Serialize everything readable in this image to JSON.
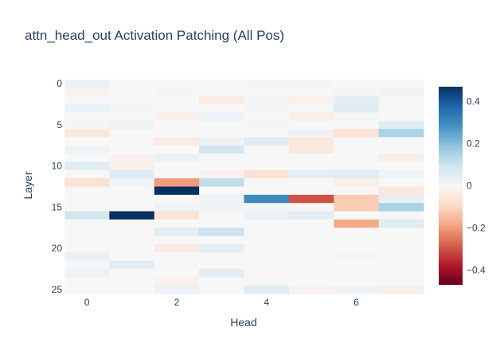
{
  "chart_data": {
    "type": "heatmap",
    "title": "attn_head_out Activation Patching (All Pos)",
    "xlabel": "Head",
    "ylabel": "Layer",
    "x_categories": [
      0,
      1,
      2,
      3,
      4,
      5,
      6,
      7
    ],
    "y_categories": [
      0,
      1,
      2,
      3,
      4,
      5,
      6,
      7,
      8,
      9,
      10,
      11,
      12,
      13,
      14,
      15,
      16,
      17,
      18,
      19,
      20,
      21,
      22,
      23,
      24,
      25
    ],
    "x_tick_labels": [
      "0",
      "2",
      "4",
      "6"
    ],
    "y_tick_labels": [
      "0",
      "5",
      "10",
      "15",
      "20",
      "25"
    ],
    "colorscale": "RdBu",
    "zmin": -0.47,
    "zmax": 0.47,
    "colorbar_tick_labels": [
      "0.4",
      "0.2",
      "0",
      "−0.2",
      "−0.4"
    ],
    "colorbar_tick_values": [
      0.4,
      0.2,
      0,
      -0.2,
      -0.4
    ],
    "z": [
      [
        0.03,
        0.0,
        0.0,
        0.0,
        0.01,
        0.01,
        0.0,
        0.0
      ],
      [
        -0.02,
        0.0,
        0.01,
        0.0,
        0.0,
        0.0,
        0.01,
        0.02
      ],
      [
        0.0,
        0.0,
        0.0,
        -0.04,
        0.01,
        -0.02,
        0.05,
        0.0
      ],
      [
        0.03,
        0.01,
        0.0,
        0.0,
        0.01,
        0.0,
        0.06,
        0.0
      ],
      [
        0.0,
        0.0,
        -0.02,
        0.03,
        0.0,
        -0.03,
        0.01,
        0.0
      ],
      [
        0.01,
        0.02,
        0.0,
        0.0,
        -0.01,
        0.0,
        0.0,
        0.06
      ],
      [
        -0.05,
        0.0,
        0.0,
        0.0,
        0.0,
        0.02,
        -0.07,
        0.15
      ],
      [
        0.0,
        0.0,
        -0.04,
        0.02,
        0.06,
        -0.05,
        0.0,
        0.0
      ],
      [
        0.02,
        0.0,
        0.0,
        0.09,
        0.0,
        -0.05,
        0.0,
        0.0
      ],
      [
        0.0,
        -0.02,
        0.03,
        0.0,
        0.0,
        0.0,
        0.0,
        -0.03
      ],
      [
        0.06,
        -0.03,
        0.0,
        0.0,
        0.0,
        0.0,
        0.0,
        0.0
      ],
      [
        0.0,
        0.06,
        0.0,
        -0.02,
        -0.07,
        0.05,
        0.06,
        0.02
      ],
      [
        -0.07,
        0.02,
        -0.2,
        0.12,
        0.0,
        0.0,
        -0.03,
        0.0
      ],
      [
        0.0,
        0.0,
        0.47,
        0.0,
        0.0,
        0.0,
        0.0,
        -0.05
      ],
      [
        0.0,
        0.0,
        0.0,
        0.02,
        0.3,
        -0.3,
        -0.12,
        0.04
      ],
      [
        0.0,
        0.0,
        0.02,
        0.02,
        0.01,
        0.01,
        -0.12,
        0.15
      ],
      [
        0.09,
        0.47,
        -0.06,
        0.0,
        0.03,
        0.05,
        0.0,
        0.01
      ],
      [
        0.0,
        0.0,
        0.0,
        0.0,
        0.0,
        0.0,
        -0.18,
        0.06
      ],
      [
        0.0,
        0.0,
        0.05,
        0.1,
        0.0,
        0.0,
        0.0,
        0.0
      ],
      [
        0.0,
        0.0,
        0.0,
        0.0,
        0.0,
        0.0,
        0.0,
        0.0
      ],
      [
        0.0,
        0.0,
        -0.04,
        0.05,
        0.0,
        0.0,
        0.0,
        0.0
      ],
      [
        0.03,
        0.0,
        0.0,
        0.0,
        0.0,
        0.0,
        0.01,
        0.0
      ],
      [
        0.0,
        0.05,
        0.0,
        0.0,
        0.0,
        0.0,
        0.0,
        0.0
      ],
      [
        0.02,
        0.0,
        0.0,
        0.05,
        0.0,
        0.0,
        0.0,
        0.0
      ],
      [
        0.0,
        0.0,
        -0.02,
        0.0,
        0.0,
        0.0,
        0.0,
        0.0
      ],
      [
        0.0,
        0.0,
        0.03,
        0.0,
        0.06,
        -0.02,
        0.02,
        -0.03
      ]
    ]
  }
}
